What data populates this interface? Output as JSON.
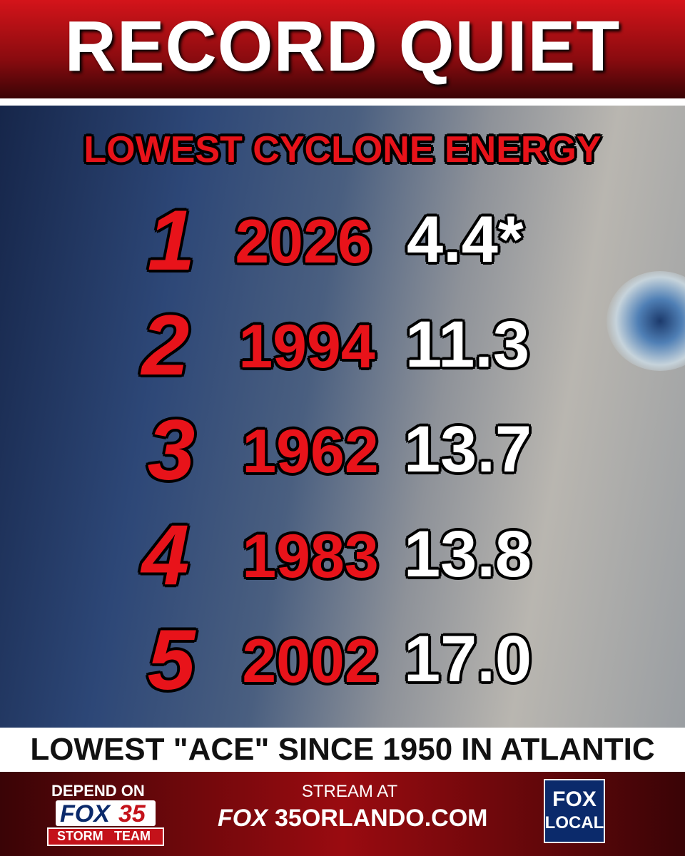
{
  "header": {
    "title": "RECORD QUIET"
  },
  "subtitle": "LOWEST CYCLONE ENERGY",
  "rows": [
    {
      "rank": "1",
      "year": "2026",
      "value": "4.4*"
    },
    {
      "rank": "2",
      "year": "1994",
      "value": "11.3"
    },
    {
      "rank": "3",
      "year": "1962",
      "value": "13.7"
    },
    {
      "rank": "4",
      "year": "1983",
      "value": "13.8"
    },
    {
      "rank": "5",
      "year": "2002",
      "value": "17.0"
    }
  ],
  "caption": "LOWEST \"ACE\" SINCE 1950 IN ATLANTIC",
  "footer": {
    "left": {
      "line1": "DEPEND ON",
      "brand": "FOX",
      "number": "35",
      "team1": "STORM",
      "team2": "TEAM"
    },
    "center": {
      "line1": "STREAM AT",
      "brand": "FOX",
      "site": "35ORLANDO.COM"
    },
    "right": {
      "line1": "FOX",
      "line2": "LOCAL"
    }
  }
}
